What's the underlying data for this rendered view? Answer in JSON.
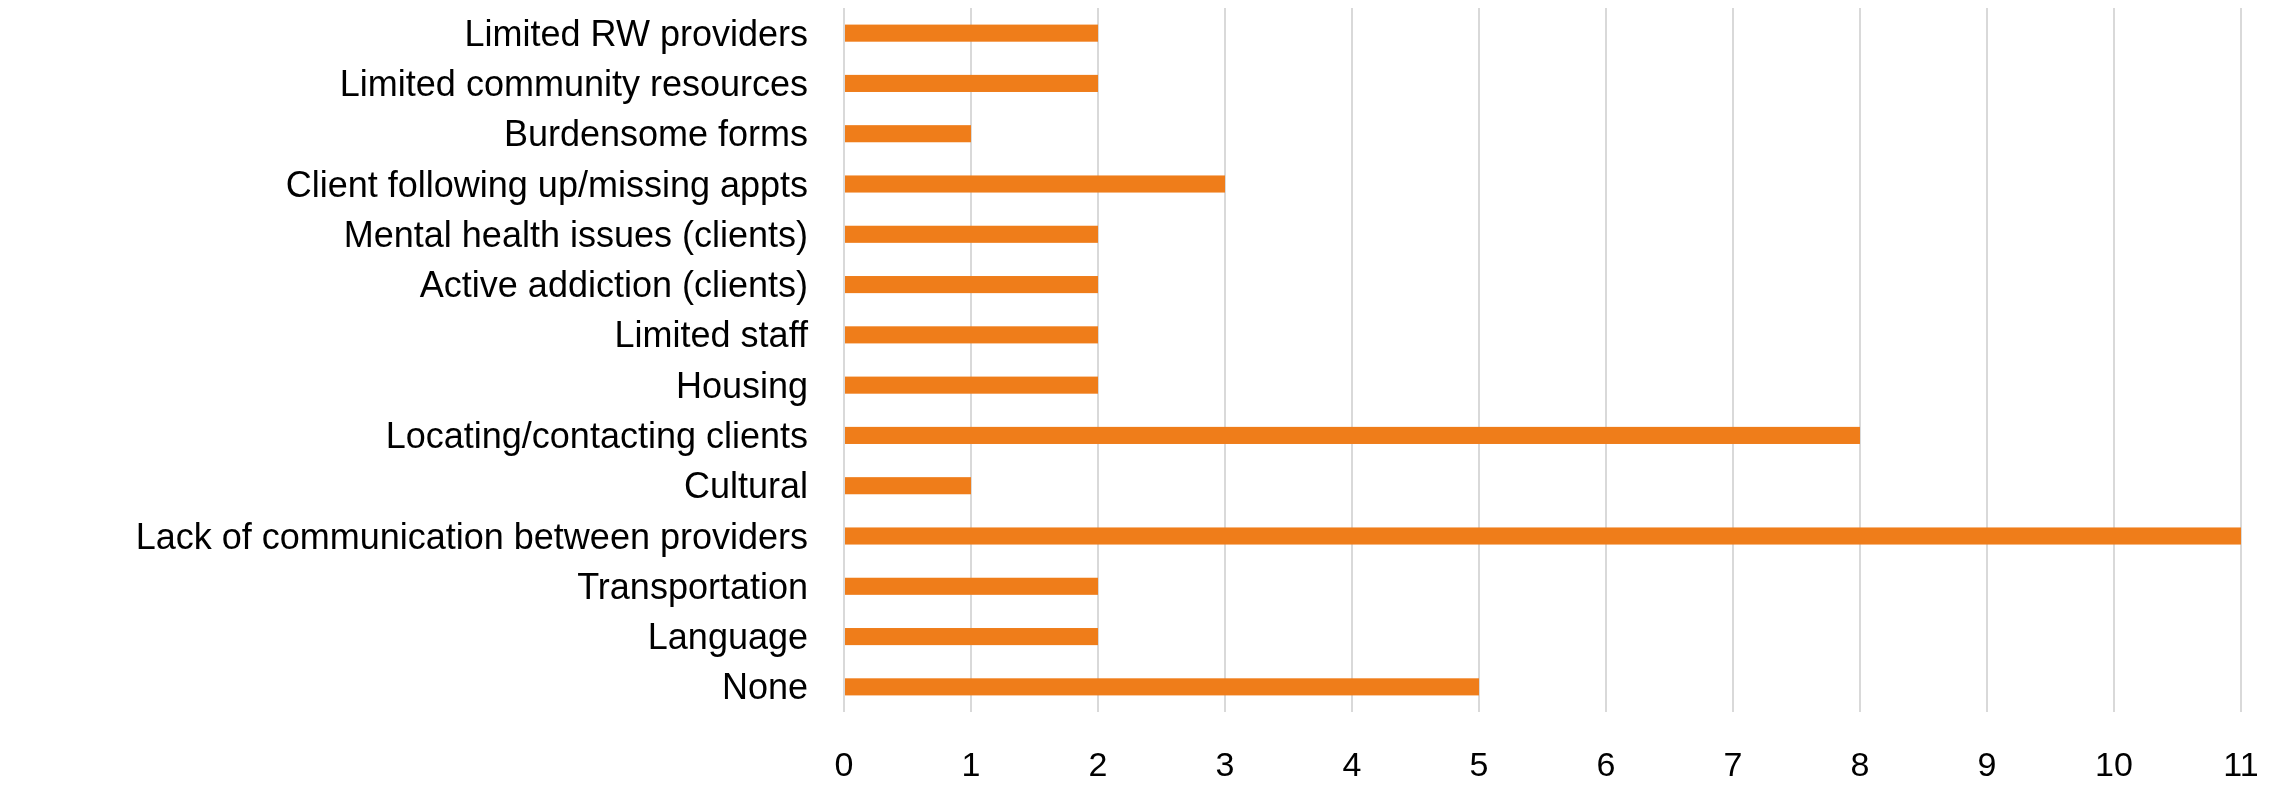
{
  "chart_data": {
    "type": "bar",
    "orientation": "horizontal",
    "categories": [
      "Limited RW providers",
      "Limited community resources",
      "Burdensome forms",
      "Client following up/missing appts",
      "Mental health issues (clients)",
      "Active addiction (clients)",
      "Limited staff",
      "Housing",
      "Locating/contacting clients",
      "Cultural",
      "Lack of communication between providers",
      "Transportation",
      "Language",
      "None"
    ],
    "values": [
      2,
      2,
      1,
      3,
      2,
      2,
      2,
      2,
      8,
      1,
      11,
      2,
      2,
      5
    ],
    "color": "#ef7d1a",
    "xlim": [
      0,
      11
    ],
    "xticks": [
      0,
      1,
      2,
      3,
      4,
      5,
      6,
      7,
      8,
      9,
      10,
      11
    ],
    "grid": "x"
  }
}
